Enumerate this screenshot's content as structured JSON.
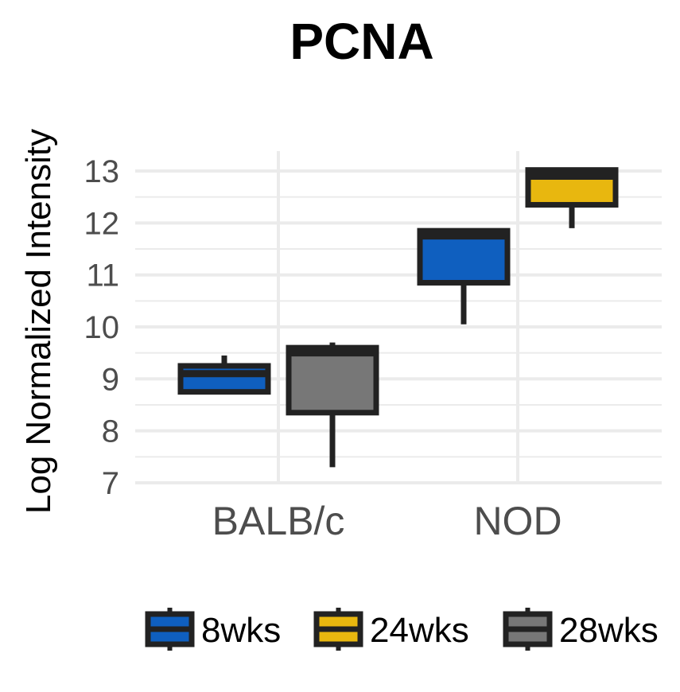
{
  "chart_data": {
    "type": "boxplot",
    "title": "PCNA",
    "xlabel": "",
    "ylabel": "Log Normalized Intensity",
    "ylim": [
      7,
      13.4
    ],
    "yticks": [
      7,
      8,
      9,
      10,
      11,
      12,
      13
    ],
    "grid": true,
    "legend_position": "bottom",
    "categories": [
      "BALB/c",
      "NOD"
    ],
    "series": [
      {
        "name": "8wks",
        "color": "#0f5fbf",
        "boxes": [
          {
            "category": "BALB/c",
            "min": 8.7,
            "q1": 8.75,
            "median": 9.1,
            "q3": 9.25,
            "max": 9.45
          },
          {
            "category": "NOD",
            "min": 10.05,
            "q1": 10.85,
            "median": 11.75,
            "q3": 11.85,
            "max": 11.85
          }
        ]
      },
      {
        "name": "24wks",
        "color": "#e8b70f",
        "boxes": [
          {
            "category": "NOD",
            "min": 11.9,
            "q1": 12.35,
            "median": 12.9,
            "q3": 13.02,
            "max": 13.05
          }
        ]
      },
      {
        "name": "28wks",
        "color": "#777777",
        "boxes": [
          {
            "category": "BALB/c",
            "min": 7.3,
            "q1": 8.35,
            "median": 9.5,
            "q3": 9.6,
            "max": 9.7
          }
        ]
      }
    ]
  }
}
